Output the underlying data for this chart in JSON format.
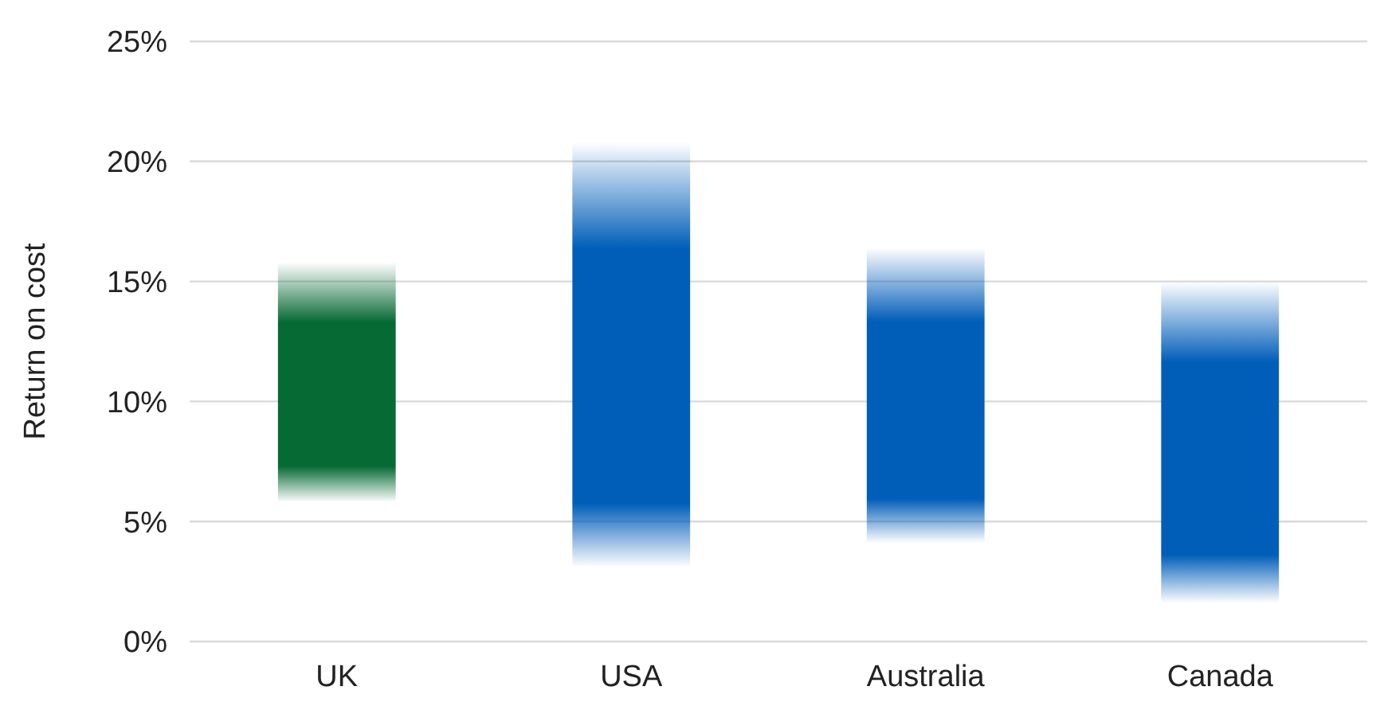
{
  "chart_data": {
    "type": "bar",
    "ylabel": "Return on cost",
    "categories": [
      "UK",
      "USA",
      "Australia",
      "Canada"
    ],
    "values": [
      10.0,
      17.7,
      12.3,
      13.4
    ],
    "base": [
      5.8,
      3.1,
      4.1,
      1.6
    ],
    "colors": [
      "#066a35",
      "#005eb8",
      "#005eb8",
      "#005eb8"
    ],
    "ylim": [
      0,
      25
    ],
    "yticks": [
      {
        "value": 0,
        "label": "0%"
      },
      {
        "value": 5,
        "label": "5%"
      },
      {
        "value": 10,
        "label": "10%"
      },
      {
        "value": 15,
        "label": "15%"
      },
      {
        "value": 20,
        "label": "20%"
      },
      {
        "value": 25,
        "label": "25%"
      }
    ],
    "grid": "y"
  }
}
